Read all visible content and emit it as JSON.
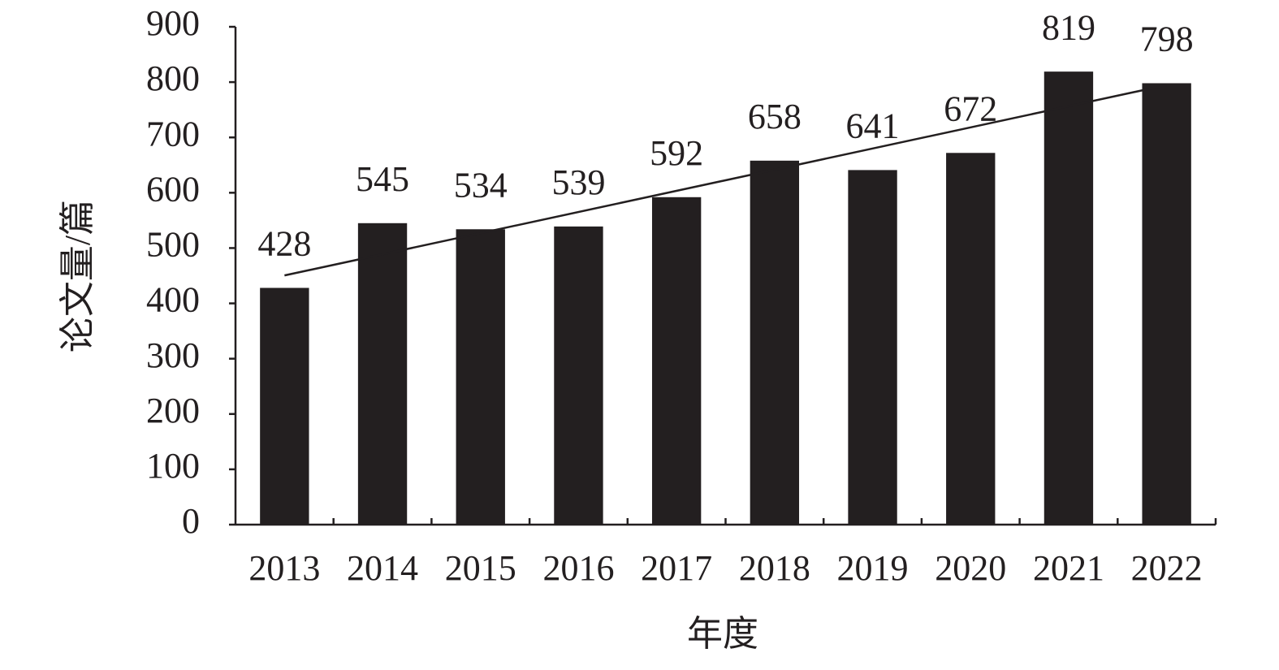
{
  "chart_data": {
    "type": "bar",
    "x_label": "年度",
    "y_label": "论文量/篇",
    "categories": [
      "2013",
      "2014",
      "2015",
      "2016",
      "2017",
      "2018",
      "2019",
      "2020",
      "2021",
      "2022"
    ],
    "values": [
      428,
      545,
      534,
      539,
      592,
      658,
      641,
      672,
      819,
      798
    ],
    "color": "#231f20",
    "ylim": [
      0,
      900
    ],
    "yticks": [
      0,
      100,
      200,
      300,
      400,
      500,
      600,
      700,
      800,
      900
    ],
    "grid": false,
    "trendline": "linear",
    "show_value_labels": true
  }
}
